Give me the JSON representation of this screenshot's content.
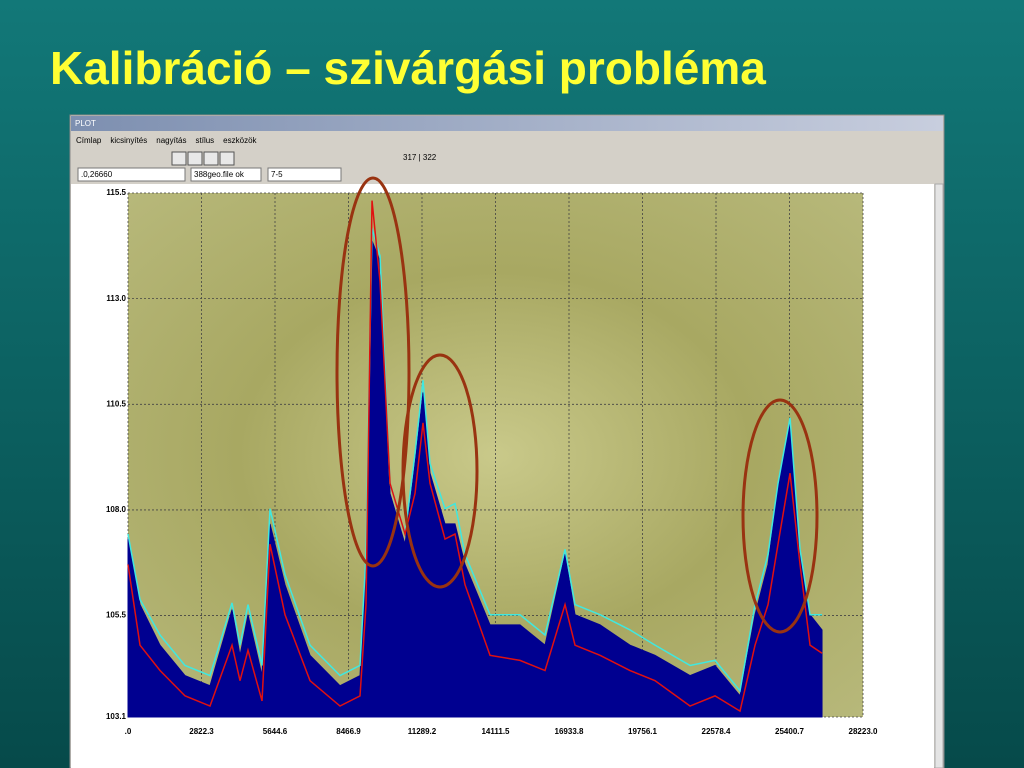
{
  "title": "Kalibráció – szivárgási probléma",
  "window": {
    "title": "PLOT",
    "menu": [
      "Címlap",
      "kicsinyítés",
      "nagyítás",
      "stílus",
      "eszközök"
    ],
    "status": "317 | 322",
    "fields": [
      ".0,26660",
      "388geo.file ok",
      "7-5"
    ]
  },
  "chart_data": {
    "type": "area",
    "x": [
      0,
      461,
      1229,
      2189,
      3149,
      3994,
      4301,
      4608,
      5146,
      5453,
      6029,
      6989,
      8141,
      8909,
      9139,
      9370,
      9677,
      10061,
      10637,
      11021,
      11328,
      11597,
      12173,
      12557,
      12941,
      13901,
      15053,
      16013,
      16781,
      17165,
      18125,
      19277,
      20237,
      21581,
      22541,
      23501,
      24077,
      24576,
      24960,
      25421,
      25805,
      26189,
      26650
    ],
    "series": [
      {
        "type": "area",
        "color": "#000090",
        "values": [
          107.31,
          105.76,
          104.8,
          104.08,
          103.84,
          105.64,
          104.56,
          105.52,
          104.08,
          107.67,
          106.23,
          104.56,
          103.84,
          104.08,
          106.71,
          114.37,
          113.89,
          108.39,
          107.19,
          109.1,
          110.78,
          108.87,
          107.67,
          107.67,
          106.71,
          105.28,
          105.28,
          104.8,
          106.95,
          105.52,
          105.28,
          104.8,
          104.56,
          104.08,
          104.32,
          103.6,
          105.52,
          106.71,
          108.51,
          110.06,
          106.95,
          105.52,
          105.16
        ]
      },
      {
        "type": "line",
        "color": "#40e8e0",
        "values": [
          107.43,
          105.88,
          105.04,
          104.32,
          104.08,
          105.8,
          104.8,
          105.76,
          104.32,
          108.03,
          106.47,
          104.8,
          104.08,
          104.32,
          106.95,
          114.66,
          114.01,
          108.63,
          107.43,
          109.34,
          111.07,
          109.1,
          108.03,
          108.15,
          106.95,
          105.52,
          105.52,
          105.04,
          107.07,
          105.76,
          105.52,
          105.16,
          104.8,
          104.32,
          104.44,
          103.72,
          105.76,
          106.95,
          108.63,
          110.18,
          107.07,
          105.52,
          105.52
        ]
      },
      {
        "type": "line",
        "color": "#e01010",
        "values": [
          106.71,
          104.8,
          104.2,
          103.6,
          103.36,
          104.8,
          103.96,
          104.68,
          103.48,
          107.19,
          105.52,
          103.96,
          103.36,
          103.6,
          105.76,
          115.32,
          113.41,
          108.63,
          107.43,
          108.39,
          110.06,
          108.63,
          107.31,
          107.43,
          106.23,
          104.56,
          104.44,
          104.2,
          105.76,
          104.8,
          104.56,
          104.2,
          103.96,
          103.36,
          103.6,
          103.24,
          104.8,
          105.76,
          107.19,
          108.87,
          106.71,
          104.8,
          104.61
        ]
      }
    ],
    "xlim": [
      0,
      28223
    ],
    "ylim": [
      103.1,
      115.5
    ],
    "xticks": [
      {
        "value": 0,
        "label": ".0"
      },
      2822.3,
      5644.6,
      8466.9,
      11289.2,
      14111.5,
      16933.8,
      19756.1,
      22578.4,
      25400.7,
      {
        "value": 28223,
        "label": "28223.0"
      }
    ],
    "yticks": [
      103.1,
      105.5,
      {
        "value": 108,
        "label": "108.0"
      },
      110.5,
      {
        "value": 113,
        "label": "113.0"
      },
      115.5
    ],
    "grid": true
  }
}
